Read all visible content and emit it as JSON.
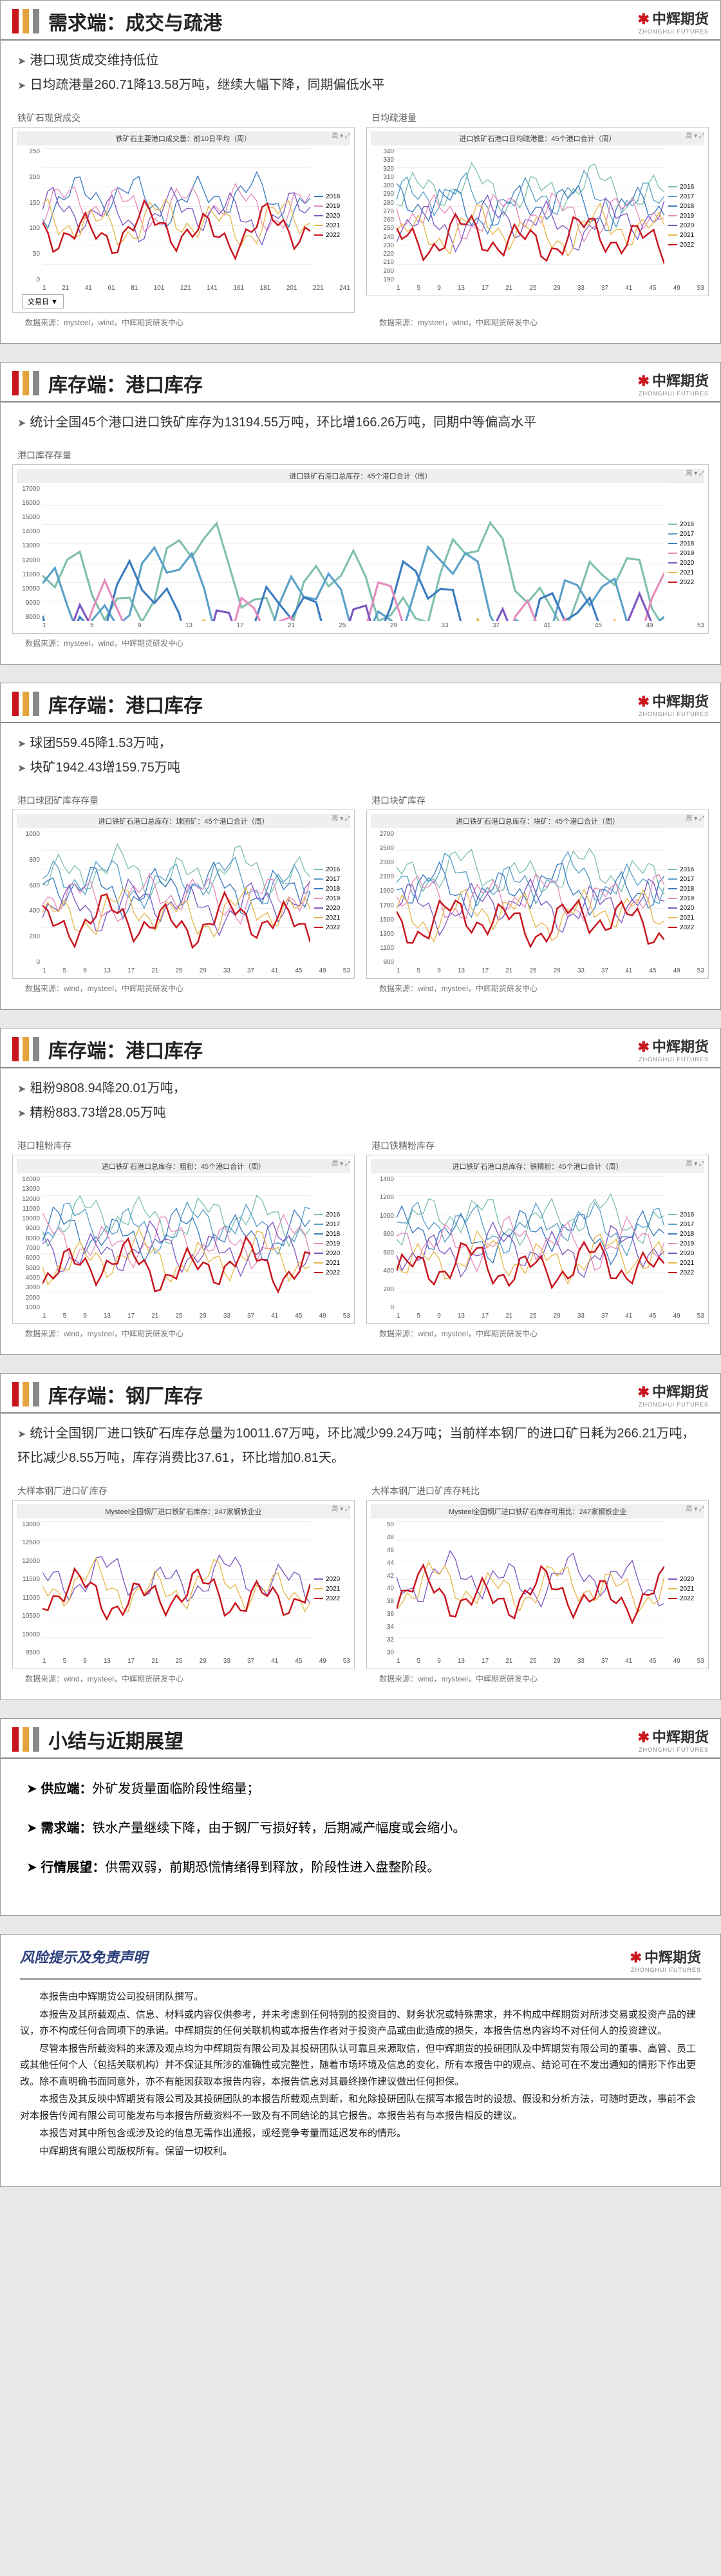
{
  "logo": {
    "text": "中辉期货",
    "sub": "ZHONGHUI FUTURES"
  },
  "legend_years_full": [
    "2016",
    "2017",
    "2018",
    "2019",
    "2020",
    "2021",
    "2022"
  ],
  "legend_years_2018": [
    "2018",
    "2019",
    "2020",
    "2021",
    "2022"
  ],
  "legend_years_2020": [
    "2020",
    "2021",
    "2022"
  ],
  "colors": {
    "2016": "#7fbfae",
    "2017": "#5aa0c8",
    "2018": "#3b7bbf",
    "2019": "#e58bbd",
    "2020": "#7e57c2",
    "2021": "#e6b84a",
    "2022": "#c9151e"
  },
  "xticks_53": [
    "1",
    "5",
    "9",
    "13",
    "17",
    "21",
    "25",
    "29",
    "33",
    "37",
    "41",
    "45",
    "49",
    "53"
  ],
  "xticks_241": [
    "1",
    "21",
    "41",
    "61",
    "81",
    "101",
    "121",
    "141",
    "161",
    "181",
    "201",
    "221",
    "241"
  ],
  "source_text": "数据来源：mysteel，wind，中辉期货研发中心",
  "source_text_wind": "数据来源：wind，mysteel，中辉期货研发中心",
  "panels": [
    {
      "title": "需求端：成交与疏港",
      "bullets": [
        "港口现货成交维持低位",
        "日均疏港量260.71降13.58万吨，继续大幅下降，同期偏低水平"
      ],
      "left": {
        "sub": "铁矿石现货成交",
        "caption": "铁矿石主要港口成交量：前10日平均（周）",
        "ylim": [
          0,
          250
        ],
        "ystep": 50,
        "legend": "legend_years_2018",
        "xticks": "xticks_241",
        "btn": "交易日 ▼"
      },
      "right": {
        "sub": "日均疏港量",
        "caption": "进口铁矿石港口日均疏港量：45个港口合计（周）",
        "ylim": [
          190,
          340
        ],
        "ystep": 10,
        "legend": "legend_years_full",
        "xticks": "xticks_53"
      }
    },
    {
      "title": "库存端：港口库存",
      "bullets": [
        "统计全国45个港口进口铁矿库存为13194.55万吨，环比增166.26万吨，同期中等偏高水平"
      ],
      "full": {
        "sub": "港口库存存量",
        "caption": "进口铁矿石港口总库存：45个港口合计（周）",
        "ylim": [
          8000,
          17000
        ],
        "ystep": 1000,
        "legend": "legend_years_full",
        "xticks": "xticks_53"
      }
    },
    {
      "title": "库存端：港口库存",
      "bullets": [
        "球团559.45降1.53万吨，",
        "块矿1942.43增159.75万吨"
      ],
      "left": {
        "sub": "港口球团矿库存存量",
        "caption": "进口铁矿石港口总库存：球团矿：45个港口合计（周）",
        "ylim": [
          0,
          1000
        ],
        "ystep": 200,
        "legend": "legend_years_full",
        "xticks": "xticks_53"
      },
      "right": {
        "sub": "港口块矿库存",
        "caption": "进口铁矿石港口总库存：块矿：45个港口合计（周）",
        "ylim": [
          900,
          2700
        ],
        "ystep": 200,
        "legend": "legend_years_full",
        "xticks": "xticks_53"
      }
    },
    {
      "title": "库存端：港口库存",
      "bullets": [
        "粗粉9808.94降20.01万吨，",
        "精粉883.73增28.05万吨"
      ],
      "left": {
        "sub": "港口粗粉库存",
        "caption": "进口铁矿石港口总库存：粗粉：45个港口合计（周）",
        "ylim": [
          200,
          14000
        ],
        "ystep": 1000,
        "legend": "legend_years_full",
        "xticks": "xticks_53"
      },
      "right": {
        "sub": "港口铁精粉库存",
        "caption": "进口铁矿石港口总库存：铁精粉：45个港口合计（周）",
        "ylim": [
          0,
          1400
        ],
        "ystep": 200,
        "legend": "legend_years_full",
        "xticks": "xticks_53"
      }
    },
    {
      "title": "库存端：钢厂库存",
      "bullets": [
        "统计全国钢厂进口铁矿石库存总量为10011.67万吨，环比减少99.24万吨；当前样本钢厂的进口矿日耗为266.21万吨，环比减少8.55万吨，库存消费比37.61，环比增加0.81天。"
      ],
      "left": {
        "sub": "大样本钢厂进口矿库存",
        "caption": "Mysteel全国钢厂进口铁矿石库存：247家钢铁企业",
        "ylim": [
          9500,
          13000
        ],
        "ystep": 500,
        "legend": "legend_years_2020",
        "xticks": "xticks_53"
      },
      "right": {
        "sub": "大样本钢厂进口矿库存耗比",
        "caption": "Mysteel全国钢厂进口铁矿石库存可用比：247家钢铁企业",
        "ylim": [
          30,
          50
        ],
        "ystep": 2,
        "legend": "legend_years_2020",
        "xticks": "xticks_53"
      }
    }
  ],
  "summary": {
    "title": "小结与近期展望",
    "lines": [
      {
        "label": "供应端：",
        "text": "外矿发货量面临阶段性缩量；"
      },
      {
        "label": "需求端：",
        "text": "铁水产量继续下降，由于钢厂亏损好转，后期减产幅度或会缩小。"
      },
      {
        "label": "行情展望：",
        "text": "供需双弱，前期恐慌情绪得到释放，阶段性进入盘整阶段。"
      }
    ]
  },
  "disclaimer": {
    "title": "风险提示及免责声明",
    "paras": [
      "本报告由中辉期货公司投研团队撰写。",
      "本报告及其所载观点、信息、材料或内容仅供参考，并未考虑到任何特别的投资目的、财务状况或特殊需求，并不构成中辉期货对所涉交易或投资产品的建议，亦不构成任何合同项下的承诺。中辉期货的任何关联机构或本报告作者对于投资产品或由此造成的损失，本报告信息内容均不对任何人的投资建议。",
      "尽管本报告所载资料的来源及观点均为中辉期货有限公司及其投研团队认可靠且来源取信，但中辉期货的投研团队及中辉期货有限公司的董事、高管、员工或其他任何个人（包括关联机构）并不保证其所涉的准确性或完整性，随着市场环境及信息的变化，所有本报告中的观点、结论可在不发出通知的情形下作出更改。除不直明确书面同意外，亦不有能因获取本报告内容，本报告信息对其最终操作建议做出任何担保。",
      "本报告及其反映中辉期货有限公司及其投研团队的本报告所载观点到断，和允除投研团队在撰写本报告时的设想、假设和分析方法，可随时更改，事前不会对本报告传闻有限公司可能发布与本报告所载资料不一致及有不同结论的其它报告。本报告若有与本报告相反的建议。",
      "本报告对其中所包含或涉及论的信息无需作出通报，或经竞争考量而延迟发布的情形。",
      "中辉期货有限公司版权所有。保留一切权利。"
    ]
  }
}
